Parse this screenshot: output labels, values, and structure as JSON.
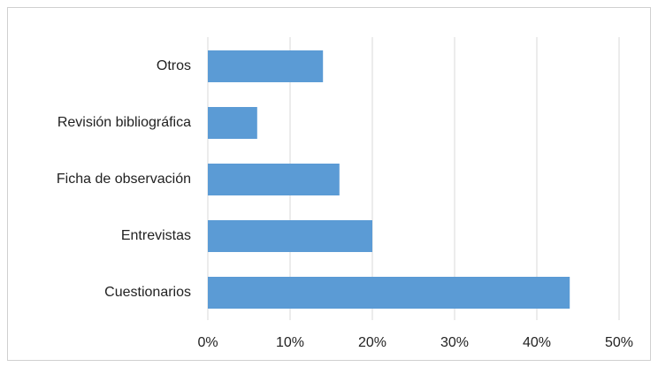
{
  "chart_data": {
    "type": "bar",
    "orientation": "horizontal",
    "categories": [
      "Otros",
      "Revisión bibliográfica",
      "Ficha de observación",
      "Entrevistas",
      "Cuestionarios"
    ],
    "values": [
      14,
      6,
      16,
      20,
      44
    ],
    "color": "#5b9bd5",
    "xlim": [
      0,
      50
    ],
    "xticks": [
      {
        "value": 0,
        "label": "0%"
      },
      {
        "value": 10,
        "label": "10%"
      },
      {
        "value": 20,
        "label": "20%"
      },
      {
        "value": 30,
        "label": "30%"
      },
      {
        "value": 40,
        "label": "40%"
      },
      {
        "value": 50,
        "label": "50%"
      }
    ],
    "grid": true
  }
}
